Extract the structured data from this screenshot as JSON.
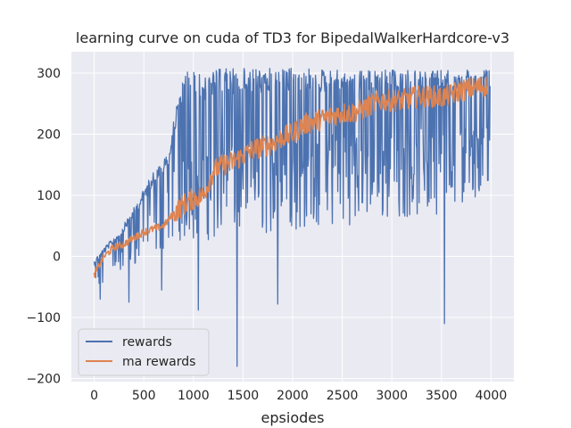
{
  "chart_data": {
    "type": "line",
    "title": "learning curve on cuda of TD3 for BipedalWalkerHardcore-v3",
    "xlabel": "epsiodes",
    "ylabel": "",
    "xlim": [
      -230,
      4230
    ],
    "ylim": [
      -205,
      335
    ],
    "xticks": [
      0,
      500,
      1000,
      1500,
      2000,
      2500,
      3000,
      3500,
      4000
    ],
    "xtick_labels": [
      "0",
      "500",
      "1000",
      "1500",
      "2000",
      "2500",
      "3000",
      "3500",
      "4000"
    ],
    "yticks": [
      -200,
      -100,
      0,
      100,
      200,
      300
    ],
    "ytick_labels": [
      "−200",
      "−100",
      "0",
      "100",
      "200",
      "300"
    ],
    "grid": true,
    "legend_position": "lower-left",
    "series": [
      {
        "name": "rewards",
        "color": "#4c72b0",
        "style": "noisy episode rewards",
        "high_envelope": [
          [
            0,
            -5
          ],
          [
            100,
            15
          ],
          [
            250,
            40
          ],
          [
            400,
            80
          ],
          [
            600,
            140
          ],
          [
            750,
            170
          ],
          [
            850,
            270
          ],
          [
            950,
            310
          ],
          [
            1100,
            295
          ],
          [
            1200,
            305
          ],
          [
            1300,
            308
          ],
          [
            2000,
            308
          ],
          [
            3000,
            305
          ],
          [
            4000,
            305
          ]
        ],
        "low_envelope": [
          [
            0,
            -75
          ],
          [
            150,
            -40
          ],
          [
            300,
            -30
          ],
          [
            500,
            -10
          ],
          [
            700,
            10
          ],
          [
            900,
            20
          ],
          [
            1100,
            25
          ],
          [
            1300,
            30
          ],
          [
            1500,
            30
          ],
          [
            2000,
            40
          ],
          [
            2500,
            50
          ],
          [
            3000,
            60
          ],
          [
            3500,
            70
          ],
          [
            4000,
            110
          ]
        ],
        "outliers": [
          [
            60,
            -70
          ],
          [
            350,
            -75
          ],
          [
            680,
            -55
          ],
          [
            1050,
            -88
          ],
          [
            1440,
            -180
          ],
          [
            1850,
            -78
          ],
          [
            3530,
            -110
          ]
        ]
      },
      {
        "name": "ma rewards",
        "color": "#dd8452",
        "x": [
          0,
          100,
          200,
          300,
          400,
          500,
          600,
          700,
          800,
          900,
          1000,
          1100,
          1200,
          1300,
          1400,
          1500,
          1600,
          1700,
          1800,
          1900,
          2000,
          2100,
          2200,
          2300,
          2400,
          2500,
          2600,
          2700,
          2800,
          2900,
          3000,
          3100,
          3200,
          3300,
          3400,
          3500,
          3600,
          3700,
          3800,
          3900,
          3960
        ],
        "values": [
          -30,
          0,
          15,
          20,
          30,
          40,
          45,
          50,
          70,
          85,
          95,
          100,
          140,
          150,
          155,
          165,
          175,
          180,
          185,
          195,
          200,
          215,
          220,
          225,
          230,
          235,
          235,
          240,
          250,
          255,
          255,
          255,
          260,
          262,
          262,
          260,
          265,
          272,
          275,
          278,
          280
        ]
      }
    ]
  }
}
